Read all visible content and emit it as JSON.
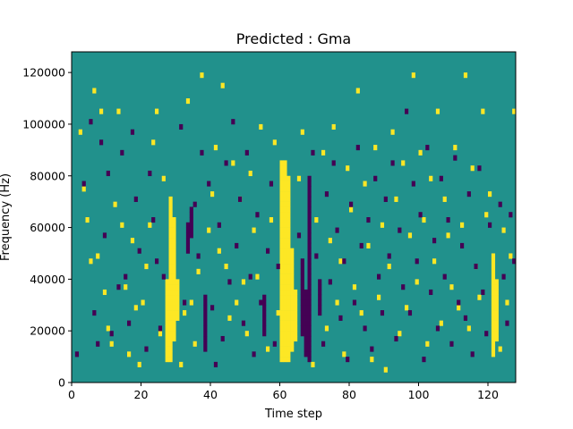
{
  "chart_data": {
    "type": "heatmap",
    "title": "Predicted : Gma",
    "xlabel": "Time step",
    "ylabel": "Frequency (Hz)",
    "xlim": [
      0,
      128
    ],
    "ylim": [
      0,
      128000
    ],
    "xticks": [
      0,
      20,
      40,
      60,
      80,
      100,
      120
    ],
    "yticks": [
      0,
      20000,
      40000,
      60000,
      80000,
      100000,
      120000
    ],
    "xtick_labels": [
      "0",
      "20",
      "40",
      "60",
      "80",
      "100",
      "120"
    ],
    "ytick_labels": [
      "0",
      "20000",
      "40000",
      "60000",
      "80000",
      "100000",
      "120000"
    ],
    "grid": false,
    "n_time": 128,
    "n_freq": 64,
    "colormap": "viridis",
    "colors": {
      "background": "#21918c",
      "high": "#fde725",
      "low": "#440154"
    },
    "bands": [
      {
        "level": "high",
        "t": 60,
        "f": [
          8000,
          86000
        ]
      },
      {
        "level": "high",
        "t": 61,
        "f": [
          8000,
          86000
        ]
      },
      {
        "level": "high",
        "t": 62,
        "f": [
          8000,
          80000
        ]
      },
      {
        "level": "high",
        "t": 63,
        "f": [
          12000,
          52000
        ]
      },
      {
        "level": "high",
        "t": 64,
        "f": [
          16000,
          36000
        ]
      },
      {
        "level": "high",
        "t": 27,
        "f": [
          8000,
          40000
        ]
      },
      {
        "level": "high",
        "t": 28,
        "f": [
          8000,
          72000
        ]
      },
      {
        "level": "high",
        "t": 29,
        "f": [
          16000,
          64000
        ]
      },
      {
        "level": "high",
        "t": 30,
        "f": [
          24000,
          40000
        ]
      },
      {
        "level": "high",
        "t": 121,
        "f": [
          10000,
          50000
        ]
      },
      {
        "level": "high",
        "t": 122,
        "f": [
          16000,
          40000
        ]
      },
      {
        "level": "low",
        "t": 66,
        "f": [
          18000,
          48000
        ]
      },
      {
        "level": "low",
        "t": 67,
        "f": [
          10000,
          36000
        ]
      },
      {
        "level": "low",
        "t": 68,
        "f": [
          8000,
          80000
        ]
      },
      {
        "level": "low",
        "t": 55,
        "f": [
          18000,
          34000
        ]
      },
      {
        "level": "low",
        "t": 38,
        "f": [
          12000,
          34000
        ]
      },
      {
        "level": "low",
        "t": 33,
        "f": [
          50000,
          62000
        ]
      },
      {
        "level": "low",
        "t": 34,
        "f": [
          56000,
          68000
        ]
      },
      {
        "level": "low",
        "t": 71,
        "f": [
          26000,
          40000
        ]
      }
    ],
    "cells_high": [
      [
        2,
        96000
      ],
      [
        3,
        74000
      ],
      [
        4,
        62000
      ],
      [
        5,
        46000
      ],
      [
        6,
        112000
      ],
      [
        7,
        48000
      ],
      [
        8,
        104000
      ],
      [
        9,
        34000
      ],
      [
        10,
        20000
      ],
      [
        11,
        14000
      ],
      [
        12,
        68000
      ],
      [
        13,
        104000
      ],
      [
        14,
        60000
      ],
      [
        15,
        36000
      ],
      [
        16,
        10000
      ],
      [
        17,
        54000
      ],
      [
        18,
        28000
      ],
      [
        19,
        6000
      ],
      [
        20,
        30000
      ],
      [
        21,
        44000
      ],
      [
        22,
        60000
      ],
      [
        23,
        92000
      ],
      [
        24,
        104000
      ],
      [
        25,
        18000
      ],
      [
        26,
        78000
      ],
      [
        31,
        6000
      ],
      [
        32,
        26000
      ],
      [
        33,
        108000
      ],
      [
        34,
        30000
      ],
      [
        35,
        14000
      ],
      [
        36,
        42000
      ],
      [
        37,
        118000
      ],
      [
        39,
        58000
      ],
      [
        40,
        72000
      ],
      [
        41,
        90000
      ],
      [
        42,
        50000
      ],
      [
        43,
        114000
      ],
      [
        44,
        44000
      ],
      [
        45,
        24000
      ],
      [
        46,
        84000
      ],
      [
        47,
        30000
      ],
      [
        48,
        70000
      ],
      [
        49,
        38000
      ],
      [
        50,
        18000
      ],
      [
        51,
        80000
      ],
      [
        52,
        58000
      ],
      [
        53,
        40000
      ],
      [
        54,
        98000
      ],
      [
        56,
        12000
      ],
      [
        57,
        62000
      ],
      [
        58,
        92000
      ],
      [
        59,
        26000
      ],
      [
        65,
        78000
      ],
      [
        66,
        96000
      ],
      [
        69,
        6000
      ],
      [
        70,
        62000
      ],
      [
        72,
        88000
      ],
      [
        73,
        20000
      ],
      [
        74,
        54000
      ],
      [
        75,
        98000
      ],
      [
        76,
        30000
      ],
      [
        77,
        46000
      ],
      [
        78,
        10000
      ],
      [
        79,
        82000
      ],
      [
        80,
        66000
      ],
      [
        81,
        36000
      ],
      [
        82,
        112000
      ],
      [
        83,
        26000
      ],
      [
        84,
        76000
      ],
      [
        85,
        52000
      ],
      [
        86,
        8000
      ],
      [
        87,
        90000
      ],
      [
        88,
        32000
      ],
      [
        89,
        60000
      ],
      [
        90,
        4000
      ],
      [
        91,
        44000
      ],
      [
        92,
        96000
      ],
      [
        93,
        70000
      ],
      [
        94,
        18000
      ],
      [
        95,
        84000
      ],
      [
        96,
        28000
      ],
      [
        97,
        56000
      ],
      [
        98,
        118000
      ],
      [
        99,
        38000
      ],
      [
        100,
        88000
      ],
      [
        101,
        62000
      ],
      [
        102,
        14000
      ],
      [
        103,
        78000
      ],
      [
        104,
        46000
      ],
      [
        105,
        104000
      ],
      [
        106,
        22000
      ],
      [
        107,
        70000
      ],
      [
        108,
        56000
      ],
      [
        109,
        36000
      ],
      [
        110,
        90000
      ],
      [
        111,
        28000
      ],
      [
        112,
        60000
      ],
      [
        113,
        118000
      ],
      [
        114,
        20000
      ],
      [
        115,
        82000
      ],
      [
        116,
        44000
      ],
      [
        117,
        32000
      ],
      [
        118,
        104000
      ],
      [
        119,
        64000
      ],
      [
        120,
        72000
      ],
      [
        123,
        12000
      ],
      [
        124,
        58000
      ],
      [
        125,
        30000
      ],
      [
        126,
        48000
      ],
      [
        127,
        104000
      ]
    ],
    "cells_low": [
      [
        1,
        10000
      ],
      [
        3,
        76000
      ],
      [
        5,
        100000
      ],
      [
        6,
        26000
      ],
      [
        7,
        14000
      ],
      [
        8,
        92000
      ],
      [
        9,
        56000
      ],
      [
        10,
        80000
      ],
      [
        11,
        18000
      ],
      [
        13,
        36000
      ],
      [
        14,
        88000
      ],
      [
        15,
        40000
      ],
      [
        16,
        22000
      ],
      [
        17,
        96000
      ],
      [
        18,
        70000
      ],
      [
        19,
        50000
      ],
      [
        21,
        12000
      ],
      [
        22,
        80000
      ],
      [
        23,
        62000
      ],
      [
        24,
        46000
      ],
      [
        25,
        20000
      ],
      [
        26,
        40000
      ],
      [
        31,
        98000
      ],
      [
        32,
        30000
      ],
      [
        35,
        68000
      ],
      [
        36,
        48000
      ],
      [
        37,
        88000
      ],
      [
        39,
        76000
      ],
      [
        40,
        28000
      ],
      [
        41,
        6000
      ],
      [
        42,
        60000
      ],
      [
        43,
        16000
      ],
      [
        44,
        84000
      ],
      [
        45,
        38000
      ],
      [
        46,
        100000
      ],
      [
        47,
        52000
      ],
      [
        48,
        70000
      ],
      [
        49,
        22000
      ],
      [
        50,
        88000
      ],
      [
        51,
        40000
      ],
      [
        52,
        10000
      ],
      [
        53,
        64000
      ],
      [
        54,
        30000
      ],
      [
        56,
        50000
      ],
      [
        57,
        76000
      ],
      [
        58,
        14000
      ],
      [
        59,
        44000
      ],
      [
        65,
        56000
      ],
      [
        69,
        88000
      ],
      [
        70,
        48000
      ],
      [
        72,
        14000
      ],
      [
        73,
        72000
      ],
      [
        74,
        38000
      ],
      [
        75,
        84000
      ],
      [
        76,
        58000
      ],
      [
        77,
        24000
      ],
      [
        78,
        46000
      ],
      [
        79,
        8000
      ],
      [
        80,
        68000
      ],
      [
        81,
        30000
      ],
      [
        82,
        90000
      ],
      [
        83,
        52000
      ],
      [
        84,
        20000
      ],
      [
        85,
        62000
      ],
      [
        86,
        12000
      ],
      [
        87,
        78000
      ],
      [
        88,
        40000
      ],
      [
        89,
        26000
      ],
      [
        90,
        70000
      ],
      [
        91,
        48000
      ],
      [
        92,
        84000
      ],
      [
        93,
        16000
      ],
      [
        94,
        58000
      ],
      [
        95,
        36000
      ],
      [
        96,
        104000
      ],
      [
        97,
        26000
      ],
      [
        98,
        76000
      ],
      [
        99,
        46000
      ],
      [
        100,
        64000
      ],
      [
        101,
        8000
      ],
      [
        102,
        90000
      ],
      [
        103,
        34000
      ],
      [
        104,
        54000
      ],
      [
        105,
        20000
      ],
      [
        106,
        78000
      ],
      [
        107,
        40000
      ],
      [
        108,
        62000
      ],
      [
        109,
        14000
      ],
      [
        110,
        86000
      ],
      [
        111,
        30000
      ],
      [
        112,
        52000
      ],
      [
        113,
        24000
      ],
      [
        114,
        72000
      ],
      [
        115,
        10000
      ],
      [
        116,
        44000
      ],
      [
        117,
        82000
      ],
      [
        118,
        34000
      ],
      [
        119,
        18000
      ],
      [
        120,
        60000
      ],
      [
        123,
        68000
      ],
      [
        124,
        40000
      ],
      [
        125,
        22000
      ],
      [
        126,
        64000
      ],
      [
        127,
        46000
      ]
    ]
  }
}
